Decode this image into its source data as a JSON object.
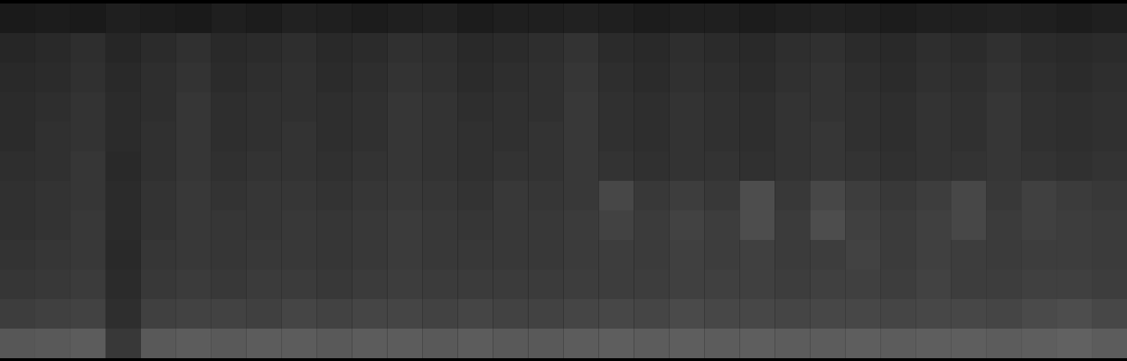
{
  "chart_data": {
    "type": "heatmap",
    "tick_labels": false,
    "zlim": [
      0,
      1
    ],
    "colors": [
      "#000000",
      "#ffffff"
    ],
    "cells": [
      [
        0.1,
        0.11,
        0.1,
        0.12,
        0.11,
        0.1,
        0.12,
        0.11,
        0.13,
        0.12,
        0.11,
        0.12,
        0.13,
        0.11,
        0.12,
        0.12,
        0.13,
        0.12,
        0.11,
        0.12,
        0.12,
        0.11,
        0.12,
        0.13,
        0.12,
        0.11,
        0.12,
        0.12,
        0.13,
        0.12,
        0.11,
        0.12
      ],
      [
        0.15,
        0.16,
        0.18,
        0.15,
        0.17,
        0.19,
        0.16,
        0.17,
        0.18,
        0.16,
        0.17,
        0.19,
        0.18,
        0.16,
        0.17,
        0.18,
        0.2,
        0.17,
        0.16,
        0.18,
        0.17,
        0.16,
        0.18,
        0.19,
        0.17,
        0.16,
        0.18,
        0.17,
        0.19,
        0.17,
        0.16,
        0.17
      ],
      [
        0.16,
        0.17,
        0.19,
        0.16,
        0.18,
        0.2,
        0.17,
        0.18,
        0.19,
        0.17,
        0.18,
        0.2,
        0.19,
        0.17,
        0.18,
        0.19,
        0.21,
        0.18,
        0.17,
        0.19,
        0.18,
        0.17,
        0.19,
        0.2,
        0.18,
        0.17,
        0.19,
        0.18,
        0.2,
        0.18,
        0.17,
        0.18
      ],
      [
        0.17,
        0.18,
        0.2,
        0.17,
        0.18,
        0.21,
        0.18,
        0.19,
        0.19,
        0.18,
        0.19,
        0.21,
        0.2,
        0.18,
        0.19,
        0.19,
        0.22,
        0.19,
        0.18,
        0.2,
        0.19,
        0.18,
        0.2,
        0.2,
        0.19,
        0.18,
        0.2,
        0.19,
        0.21,
        0.19,
        0.18,
        0.19
      ],
      [
        0.17,
        0.19,
        0.2,
        0.17,
        0.19,
        0.21,
        0.18,
        0.19,
        0.2,
        0.18,
        0.19,
        0.21,
        0.2,
        0.19,
        0.19,
        0.2,
        0.22,
        0.19,
        0.18,
        0.2,
        0.19,
        0.18,
        0.2,
        0.21,
        0.19,
        0.18,
        0.2,
        0.19,
        0.21,
        0.19,
        0.18,
        0.19
      ],
      [
        0.18,
        0.19,
        0.21,
        0.16,
        0.19,
        0.21,
        0.19,
        0.2,
        0.2,
        0.19,
        0.2,
        0.21,
        0.2,
        0.19,
        0.2,
        0.2,
        0.22,
        0.2,
        0.19,
        0.2,
        0.2,
        0.19,
        0.2,
        0.21,
        0.2,
        0.19,
        0.2,
        0.2,
        0.21,
        0.2,
        0.19,
        0.2
      ],
      [
        0.19,
        0.2,
        0.21,
        0.17,
        0.2,
        0.22,
        0.2,
        0.21,
        0.21,
        0.2,
        0.21,
        0.22,
        0.21,
        0.2,
        0.22,
        0.21,
        0.22,
        0.28,
        0.22,
        0.24,
        0.22,
        0.3,
        0.22,
        0.28,
        0.24,
        0.22,
        0.24,
        0.28,
        0.22,
        0.25,
        0.23,
        0.22
      ],
      [
        0.19,
        0.2,
        0.22,
        0.17,
        0.2,
        0.22,
        0.21,
        0.21,
        0.22,
        0.21,
        0.22,
        0.23,
        0.22,
        0.21,
        0.22,
        0.22,
        0.23,
        0.26,
        0.23,
        0.26,
        0.24,
        0.3,
        0.23,
        0.3,
        0.25,
        0.23,
        0.25,
        0.28,
        0.23,
        0.25,
        0.24,
        0.23
      ],
      [
        0.2,
        0.21,
        0.22,
        0.16,
        0.21,
        0.22,
        0.21,
        0.22,
        0.22,
        0.21,
        0.22,
        0.23,
        0.22,
        0.22,
        0.22,
        0.22,
        0.23,
        0.24,
        0.23,
        0.25,
        0.24,
        0.25,
        0.23,
        0.24,
        0.26,
        0.23,
        0.25,
        0.24,
        0.23,
        0.24,
        0.24,
        0.23
      ],
      [
        0.21,
        0.22,
        0.23,
        0.17,
        0.22,
        0.23,
        0.22,
        0.23,
        0.23,
        0.22,
        0.23,
        0.24,
        0.23,
        0.23,
        0.23,
        0.23,
        0.24,
        0.24,
        0.24,
        0.25,
        0.25,
        0.25,
        0.24,
        0.25,
        0.25,
        0.24,
        0.26,
        0.24,
        0.24,
        0.25,
        0.25,
        0.24
      ],
      [
        0.24,
        0.25,
        0.26,
        0.18,
        0.25,
        0.26,
        0.26,
        0.25,
        0.27,
        0.26,
        0.27,
        0.27,
        0.26,
        0.27,
        0.26,
        0.26,
        0.27,
        0.28,
        0.27,
        0.29,
        0.28,
        0.28,
        0.27,
        0.28,
        0.28,
        0.27,
        0.28,
        0.28,
        0.27,
        0.29,
        0.3,
        0.28
      ],
      [
        0.34,
        0.35,
        0.36,
        0.22,
        0.35,
        0.36,
        0.35,
        0.36,
        0.36,
        0.35,
        0.36,
        0.36,
        0.35,
        0.36,
        0.35,
        0.35,
        0.36,
        0.37,
        0.36,
        0.37,
        0.36,
        0.37,
        0.36,
        0.36,
        0.37,
        0.36,
        0.37,
        0.37,
        0.36,
        0.37,
        0.38,
        0.36
      ]
    ]
  }
}
